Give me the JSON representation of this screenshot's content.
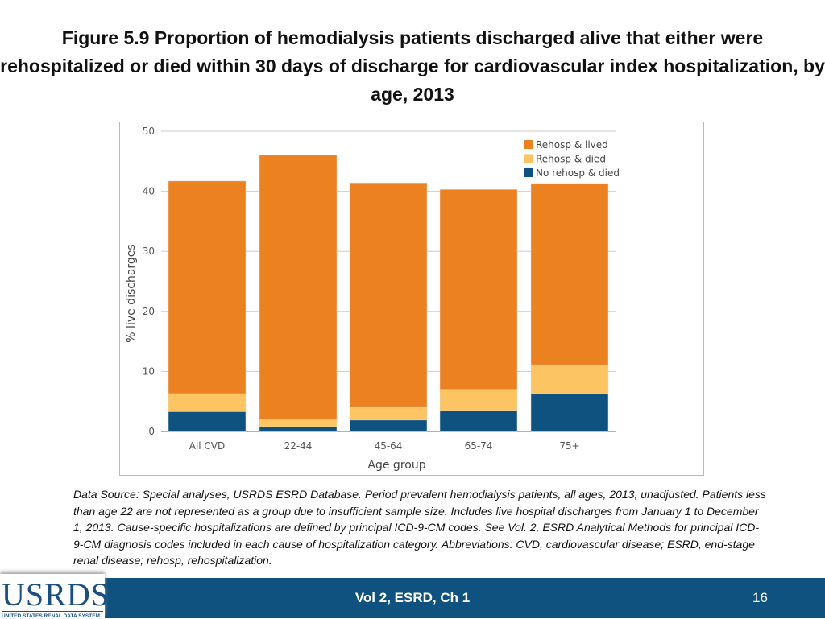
{
  "title": "Figure 5.9 Proportion of hemodialysis patients discharged alive that either were rehospitalized or died within 30 days of discharge for cardiovascular index hospitalization, by age, 2013",
  "chart_data": {
    "type": "bar",
    "stacked": true,
    "categories": [
      "All CVD",
      "22-44",
      "45-64",
      "65-74",
      "75+"
    ],
    "series": [
      {
        "name": "No rehosp & died",
        "color": "#0f5280",
        "values": [
          3.3,
          0.8,
          1.9,
          3.5,
          6.3
        ]
      },
      {
        "name": "Rehosp & died",
        "color": "#fdc463",
        "values": [
          3.0,
          1.3,
          2.1,
          3.5,
          4.8
        ]
      },
      {
        "name": "Rehosp & lived",
        "color": "#ec8121",
        "values": [
          35.4,
          43.9,
          37.4,
          33.3,
          30.2
        ]
      }
    ],
    "xlabel": "Age group",
    "ylabel": "% live discharges",
    "ylim": [
      0,
      50
    ],
    "yticks": [
      0,
      10,
      20,
      30,
      40,
      50
    ],
    "grid": true,
    "legend_position": "top-right"
  },
  "notes": "Data Source: Special analyses, USRDS ESRD Database. Period prevalent hemodialysis patients, all ages, 2013, unadjusted. Patients less than age 22 are not represented as a group due to insufficient sample size. Includes live hospital discharges from January 1 to December 1, 2013. Cause-specific hospitalizations are defined by principal ICD-9-CM codes. See Vol. 2, ESRD Analytical Methods for principal ICD-9-CM diagnosis codes included in each cause of hospitalization category. Abbreviations: CVD, cardiovascular disease; ESRD, end-stage renal disease; rehosp, rehospitalization.",
  "footer": {
    "logo_text": "USRDS",
    "logo_subtext": "UNITED STATES RENAL DATA SYSTEM",
    "center": "Vol 2, ESRD, Ch 1",
    "page": "16"
  }
}
